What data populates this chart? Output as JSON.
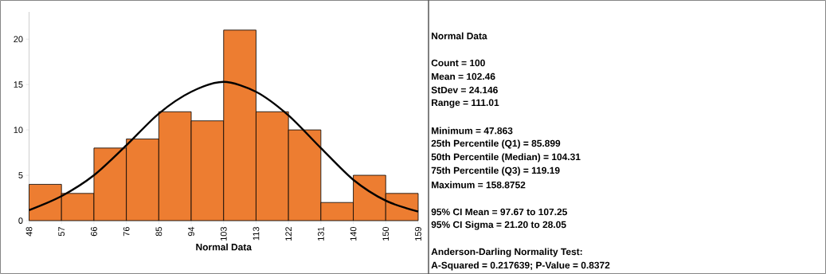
{
  "chart_data": [
    {
      "type": "histogram",
      "xlabel": "Normal Data",
      "bins": [
        47.86,
        57.11,
        66.37,
        75.62,
        84.87,
        94.12,
        103.37,
        112.62,
        121.87,
        131.12,
        140.37,
        149.62,
        158.88
      ],
      "xlim": [
        47.86,
        158.88
      ],
      "xticks": [
        {
          "value": 47.86,
          "label": "48"
        },
        {
          "value": 57.11,
          "label": "57"
        },
        {
          "value": 66.37,
          "label": "66"
        },
        {
          "value": 75.62,
          "label": "76"
        },
        {
          "value": 84.87,
          "label": "85"
        },
        {
          "value": 94.12,
          "label": "94"
        },
        {
          "value": 103.37,
          "label": "103"
        },
        {
          "value": 112.62,
          "label": "113"
        },
        {
          "value": 121.87,
          "label": "122"
        },
        {
          "value": 131.12,
          "label": "131"
        },
        {
          "value": 140.37,
          "label": "140"
        },
        {
          "value": 149.62,
          "label": "150"
        },
        {
          "value": 158.88,
          "label": "159"
        }
      ],
      "ylim": [
        0,
        23
      ],
      "yticks": [
        0,
        5,
        10,
        15,
        20
      ],
      "series": [
        {
          "type": "histogram",
          "color": "#ed7d31",
          "values": [
            4,
            3,
            8,
            9,
            12,
            11,
            21,
            12,
            10,
            2,
            5,
            3
          ]
        },
        {
          "type": "line",
          "color": "#000000",
          "line_style": "solid",
          "x": [
            47.86,
            57.11,
            66.37,
            75.62,
            84.87,
            94.12,
            103.37,
            112.62,
            121.87,
            131.12,
            140.37,
            149.62,
            158.88
          ],
          "values": [
            1.15,
            2.7,
            5.0,
            8.3,
            11.8,
            14.2,
            15.3,
            14.2,
            11.6,
            8.0,
            4.5,
            2.2,
            1.0
          ]
        }
      ]
    },
    {
      "type": "other",
      "title": "Normal Data",
      "annotations": [
        "Count = 100",
        "Mean = 102.46",
        "StDev = 24.146",
        "Range = 111.01",
        "Minimum = 47.863",
        "25th Percentile (Q1) = 85.899",
        "50th Percentile (Median) = 104.31",
        "75th Percentile (Q3) = 119.19",
        "Maximum = 158.8752",
        "95% CI Mean = 97.67 to 107.25",
        "95% CI Sigma = 21.20 to 28.05",
        "Anderson-Darling Normality Test:",
        "A-Squared = 0.217639; P-Value = 0.8372"
      ]
    }
  ]
}
